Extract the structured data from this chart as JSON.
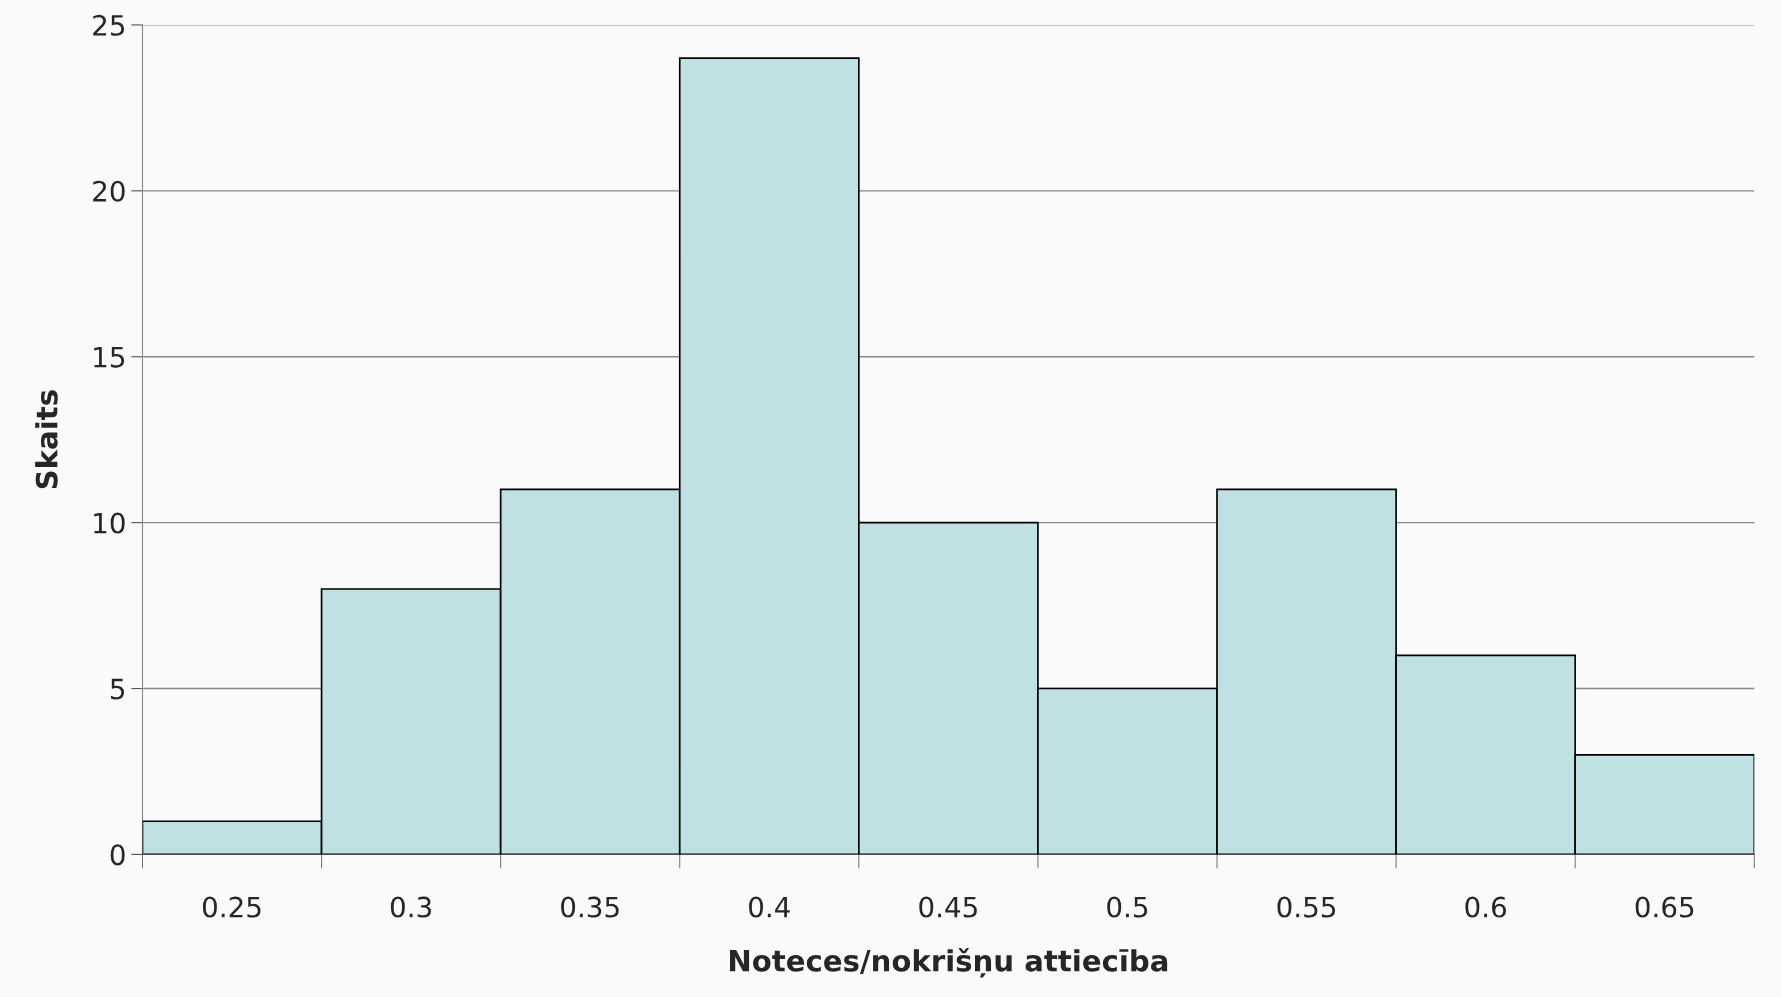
{
  "chart_data": {
    "type": "bar",
    "xlabel": "Noteces/nokrišņu attiecība",
    "ylabel": "Skaits",
    "categories": [
      "0.25",
      "0.3",
      "0.35",
      "0.4",
      "0.45",
      "0.5",
      "0.55",
      "0.6",
      "0.65"
    ],
    "values": [
      1,
      8,
      11,
      24,
      10,
      5,
      11,
      6,
      3
    ],
    "color": "#bfe1e3",
    "ylim": [
      0,
      25
    ],
    "yticks": [
      0,
      5,
      10,
      15,
      20,
      25
    ],
    "grid": "y",
    "legend": false
  }
}
